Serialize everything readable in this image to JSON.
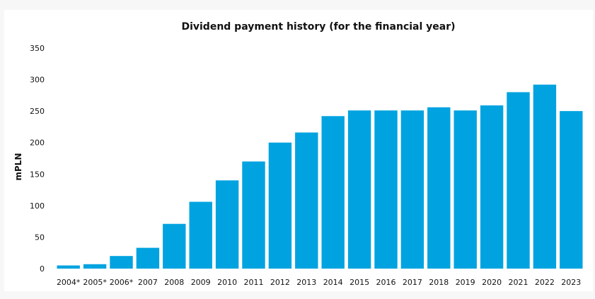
{
  "chart_data": {
    "type": "bar",
    "title": "Dividend payment history (for the financial year)",
    "xlabel": "",
    "ylabel": "mPLN",
    "ylim": [
      0,
      350
    ],
    "yticks": [
      0,
      50,
      100,
      150,
      200,
      250,
      300,
      350
    ],
    "grid": false,
    "categories": [
      "2004*",
      "2005*",
      "2006*",
      "2007",
      "2008",
      "2009",
      "2010",
      "2011",
      "2012",
      "2013",
      "2014",
      "2015",
      "2016",
      "2017",
      "2018",
      "2019",
      "2020",
      "2021",
      "2022",
      "2023"
    ],
    "values": [
      5,
      7,
      20,
      33,
      71,
      106,
      140,
      170,
      200,
      216,
      242,
      251,
      251,
      251,
      256,
      251,
      259,
      280,
      292,
      250
    ],
    "bar_color": "#00a3e0"
  }
}
